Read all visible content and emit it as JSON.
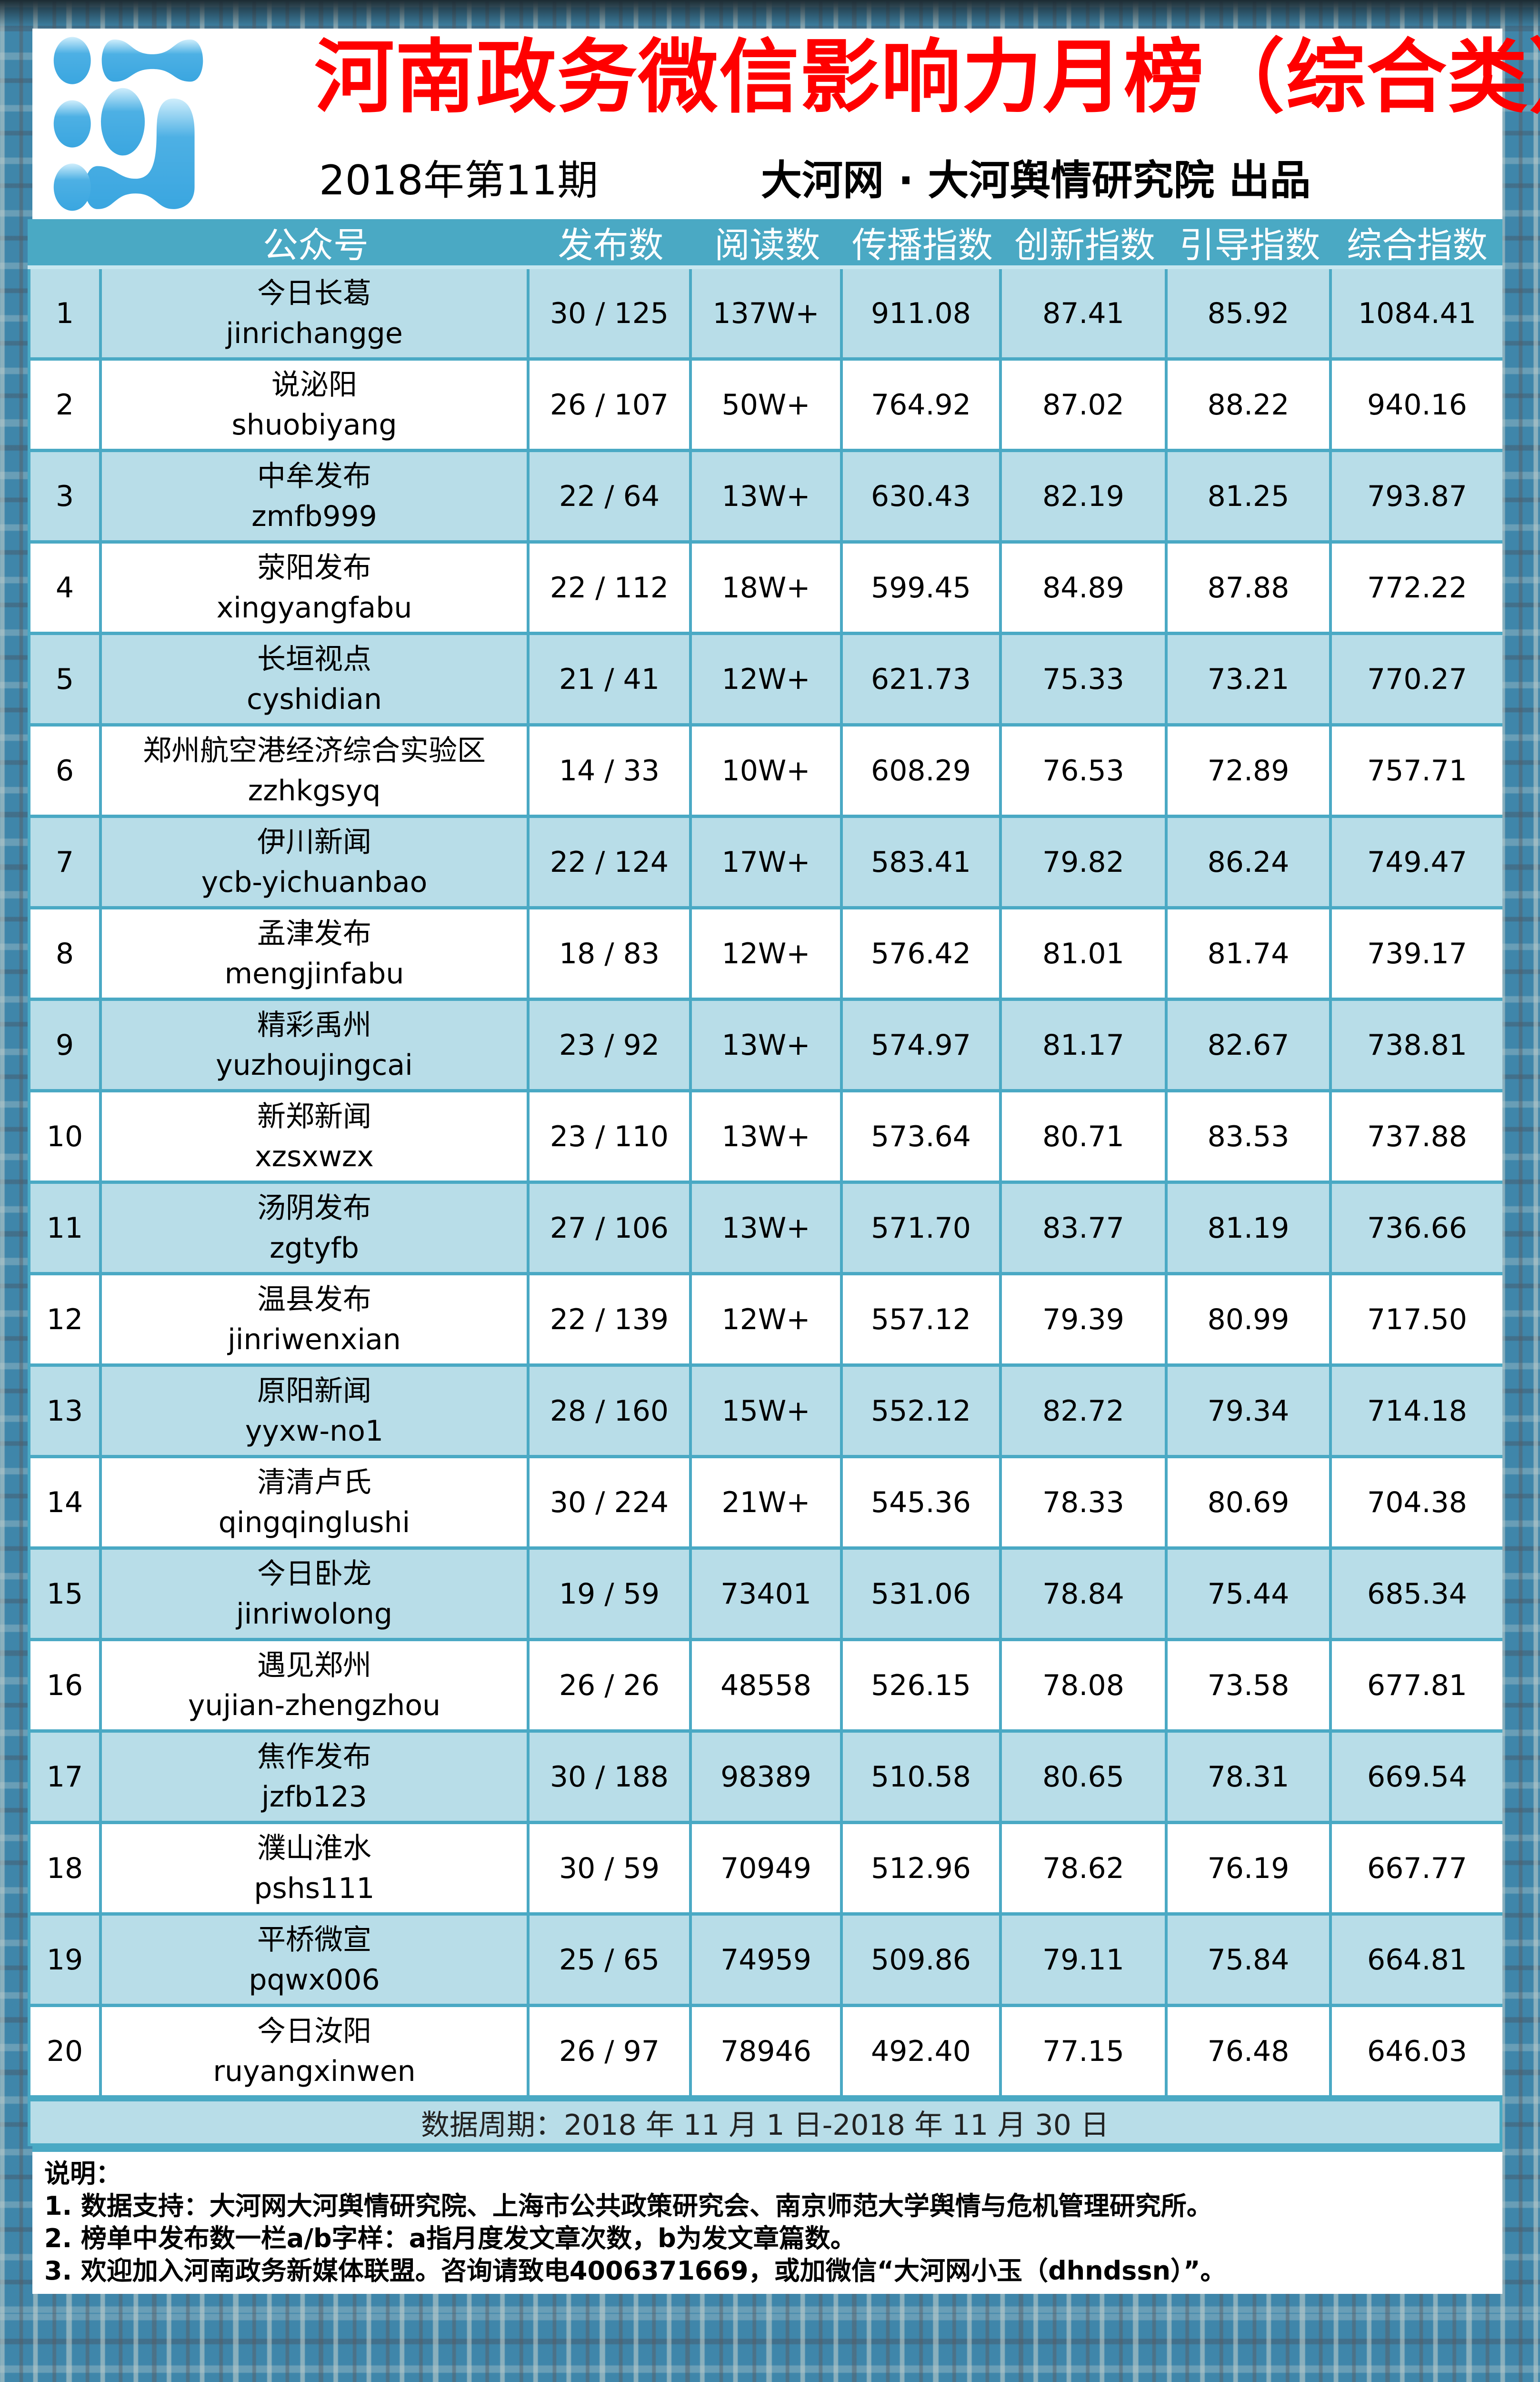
{
  "header": {
    "title": "河南政务微信影响力月榜（综合类）",
    "issue": "2018年第11期",
    "publisher": "大河网 · 大河舆情研究院  出品",
    "logo": "blue-droplet-logo"
  },
  "colors": {
    "title": "#ff0000",
    "header_bg": "#4aa9c4",
    "row_alt": "#b8dde8",
    "border": "#4aa9c4"
  },
  "table": {
    "columns": [
      "",
      "公众号",
      "发布数",
      "阅读数",
      "传播指数",
      "创新指数",
      "引导指数",
      "综合指数"
    ],
    "rows": [
      {
        "rank": "1",
        "name": "今日长葛",
        "id": "jinrichangge",
        "posts": "30 / 125",
        "reads": "137W+",
        "spread": "911.08",
        "innovation": "87.41",
        "guidance": "85.92",
        "total": "1084.41"
      },
      {
        "rank": "2",
        "name": "说泌阳",
        "id": "shuobiyang",
        "posts": "26 / 107",
        "reads": "50W+",
        "spread": "764.92",
        "innovation": "87.02",
        "guidance": "88.22",
        "total": "940.16"
      },
      {
        "rank": "3",
        "name": "中牟发布",
        "id": "zmfb999",
        "posts": "22 / 64",
        "reads": "13W+",
        "spread": "630.43",
        "innovation": "82.19",
        "guidance": "81.25",
        "total": "793.87"
      },
      {
        "rank": "4",
        "name": "荥阳发布",
        "id": "xingyangfabu",
        "posts": "22 / 112",
        "reads": "18W+",
        "spread": "599.45",
        "innovation": "84.89",
        "guidance": "87.88",
        "total": "772.22"
      },
      {
        "rank": "5",
        "name": "长垣视点",
        "id": "cyshidian",
        "posts": "21 / 41",
        "reads": "12W+",
        "spread": "621.73",
        "innovation": "75.33",
        "guidance": "73.21",
        "total": "770.27"
      },
      {
        "rank": "6",
        "name": "郑州航空港经济综合实验区",
        "id": "zzhkgsyq",
        "posts": "14 / 33",
        "reads": "10W+",
        "spread": "608.29",
        "innovation": "76.53",
        "guidance": "72.89",
        "total": "757.71"
      },
      {
        "rank": "7",
        "name": "伊川新闻",
        "id": "ycb-yichuanbao",
        "posts": "22 / 124",
        "reads": "17W+",
        "spread": "583.41",
        "innovation": "79.82",
        "guidance": "86.24",
        "total": "749.47"
      },
      {
        "rank": "8",
        "name": "孟津发布",
        "id": "mengjinfabu",
        "posts": "18 / 83",
        "reads": "12W+",
        "spread": "576.42",
        "innovation": "81.01",
        "guidance": "81.74",
        "total": "739.17"
      },
      {
        "rank": "9",
        "name": "精彩禹州",
        "id": "yuzhoujingcai",
        "posts": "23 / 92",
        "reads": "13W+",
        "spread": "574.97",
        "innovation": "81.17",
        "guidance": "82.67",
        "total": "738.81"
      },
      {
        "rank": "10",
        "name": "新郑新闻",
        "id": "xzsxwzx",
        "posts": "23 / 110",
        "reads": "13W+",
        "spread": "573.64",
        "innovation": "80.71",
        "guidance": "83.53",
        "total": "737.88"
      },
      {
        "rank": "11",
        "name": "汤阴发布",
        "id": "zgtyfb",
        "posts": "27 / 106",
        "reads": "13W+",
        "spread": "571.70",
        "innovation": "83.77",
        "guidance": "81.19",
        "total": "736.66"
      },
      {
        "rank": "12",
        "name": "温县发布",
        "id": "jinriwenxian",
        "posts": "22 / 139",
        "reads": "12W+",
        "spread": "557.12",
        "innovation": "79.39",
        "guidance": "80.99",
        "total": "717.50"
      },
      {
        "rank": "13",
        "name": "原阳新闻",
        "id": "yyxw-no1",
        "posts": "28 / 160",
        "reads": "15W+",
        "spread": "552.12",
        "innovation": "82.72",
        "guidance": "79.34",
        "total": "714.18"
      },
      {
        "rank": "14",
        "name": "清清卢氏",
        "id": "qingqinglushi",
        "posts": "30 / 224",
        "reads": "21W+",
        "spread": "545.36",
        "innovation": "78.33",
        "guidance": "80.69",
        "total": "704.38"
      },
      {
        "rank": "15",
        "name": "今日卧龙",
        "id": "jinriwolong",
        "posts": "19 / 59",
        "reads": "73401",
        "spread": "531.06",
        "innovation": "78.84",
        "guidance": "75.44",
        "total": "685.34"
      },
      {
        "rank": "16",
        "name": "遇见郑州",
        "id": "yujian-zhengzhou",
        "posts": "26 / 26",
        "reads": "48558",
        "spread": "526.15",
        "innovation": "78.08",
        "guidance": "73.58",
        "total": "677.81"
      },
      {
        "rank": "17",
        "name": "焦作发布",
        "id": "jzfb123",
        "posts": "30 / 188",
        "reads": "98389",
        "spread": "510.58",
        "innovation": "80.65",
        "guidance": "78.31",
        "total": "669.54"
      },
      {
        "rank": "18",
        "name": "濮山淮水",
        "id": "pshs111",
        "posts": "30 / 59",
        "reads": "70949",
        "spread": "512.96",
        "innovation": "78.62",
        "guidance": "76.19",
        "total": "667.77"
      },
      {
        "rank": "19",
        "name": "平桥微宣",
        "id": "pqwx006",
        "posts": "25 / 65",
        "reads": "74959",
        "spread": "509.86",
        "innovation": "79.11",
        "guidance": "75.84",
        "total": "664.81"
      },
      {
        "rank": "20",
        "name": "今日汝阳",
        "id": "ruyangxinwen",
        "posts": "26 / 97",
        "reads": "78946",
        "spread": "492.40",
        "innovation": "77.15",
        "guidance": "76.48",
        "total": "646.03"
      }
    ]
  },
  "period": "数据周期：2018 年 11 月 1 日-2018 年 11 月 30 日",
  "notes": {
    "heading": "说明：",
    "items": [
      "1. 数据支持：大河网大河舆情研究院、上海市公共政策研究会、南京师范大学舆情与危机管理研究所。",
      "2. 榜单中发布数一栏a/b字样：a指月度发文章次数，b为发文章篇数。",
      "3. 欢迎加入河南政务新媒体联盟。咨询请致电4006371669，或加微信“大河网小玉（dhndssn）”。"
    ]
  }
}
